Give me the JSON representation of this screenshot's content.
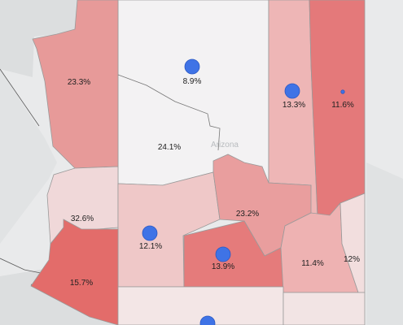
{
  "map": {
    "state_label": "Arizona",
    "colors": {
      "background": "#e9eaeb",
      "land_outside": "#dcdedf",
      "dot": "#3f73e6"
    },
    "counties": [
      {
        "id": "mohave",
        "value": "23.3%",
        "fill": "#e79a99"
      },
      {
        "id": "coconino",
        "value": "24.1%",
        "fill": "#f3f2f3"
      },
      {
        "id": "coconino-north",
        "value": "8.9%",
        "fill": "#f3f2f3"
      },
      {
        "id": "navajo",
        "value": "13.3%",
        "fill": "#eeb6b6"
      },
      {
        "id": "apache",
        "value": "11.6%",
        "fill": "#e4797a"
      },
      {
        "id": "la-paz",
        "value": "32.6%",
        "fill": "#f0d8d9"
      },
      {
        "id": "yavapai",
        "value": "12.1%",
        "fill": "#efc8c8"
      },
      {
        "id": "gila",
        "value": "23.2%",
        "fill": "#e99e9e"
      },
      {
        "id": "yuma",
        "value": "15.7%",
        "fill": "#e36c6a"
      },
      {
        "id": "maricopa",
        "value": "13.9%",
        "fill": "#e57b7b"
      },
      {
        "id": "graham",
        "value": "11.4%",
        "fill": "#eeb2b2"
      },
      {
        "id": "greenlee",
        "value": "12%",
        "fill": "#f2dede"
      },
      {
        "id": "pinal",
        "value": "",
        "fill": "#f0d0d0"
      },
      {
        "id": "pima",
        "value": "",
        "fill": "#f3e6e6"
      },
      {
        "id": "cochise",
        "value": "",
        "fill": "#f2e4e4"
      }
    ],
    "dots": [
      {
        "county": "coconino-north",
        "size": "medium"
      },
      {
        "county": "navajo",
        "size": "medium"
      },
      {
        "county": "apache",
        "size": "tiny"
      },
      {
        "county": "yavapai",
        "size": "medium"
      },
      {
        "county": "maricopa",
        "size": "medium"
      },
      {
        "county": "pima",
        "size": "medium"
      }
    ]
  }
}
